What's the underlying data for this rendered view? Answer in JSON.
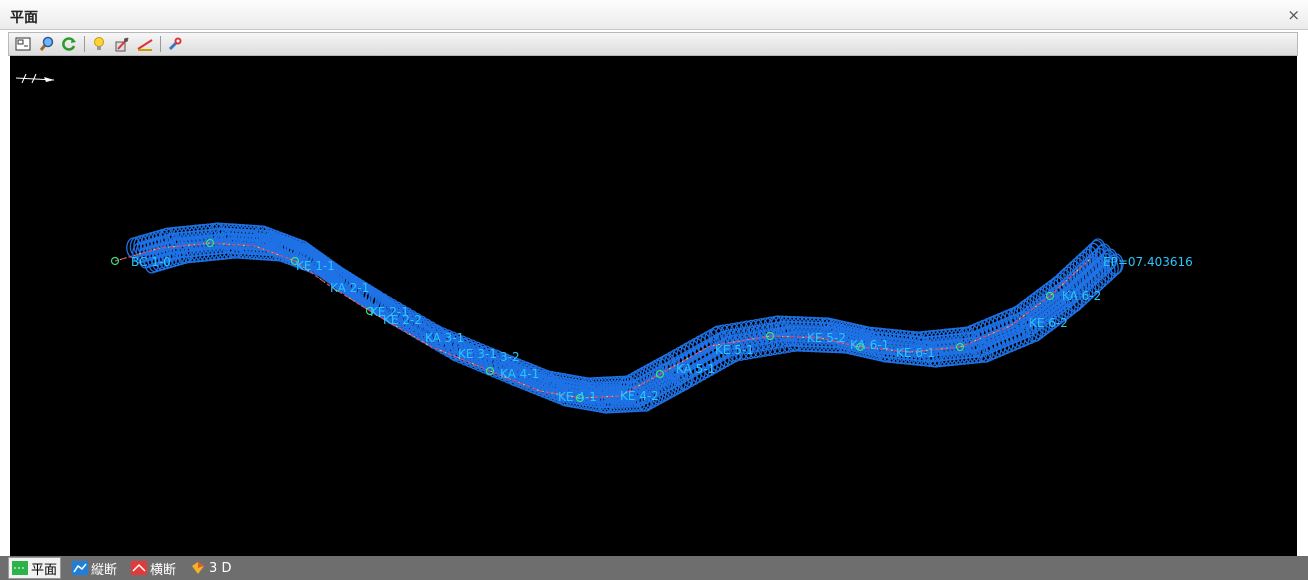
{
  "window": {
    "title": "平面",
    "close_symbol": "×"
  },
  "toolbar": {
    "buttons": [
      {
        "icon": "fit-view-icon"
      },
      {
        "icon": "zoom-magnifier-icon"
      },
      {
        "icon": "refresh-icon"
      },
      {
        "icon": "lightbulb-icon"
      },
      {
        "icon": "settings-tool-icon"
      },
      {
        "icon": "measure-ruler-icon"
      },
      {
        "icon": "tools-wrench-icon"
      }
    ]
  },
  "plan_view": {
    "background": "#000000",
    "label_color": "#29c6ff",
    "band_color": "#1e72e6",
    "alignment_labels": [
      {
        "text": "BC  1-0"
      },
      {
        "text": "KE  1-1"
      },
      {
        "text": "KA  2-1"
      },
      {
        "text": "KE  2-1"
      },
      {
        "text": "KE  2-2"
      },
      {
        "text": "KA  3-1"
      },
      {
        "text": "KE 3-1"
      },
      {
        "text": "3-2"
      },
      {
        "text": "KA  4-1"
      },
      {
        "text": "KE  4-1"
      },
      {
        "text": "KE  4-2"
      },
      {
        "text": "KA  5-1"
      },
      {
        "text": "KE  5-1"
      },
      {
        "text": "KE  5-2"
      },
      {
        "text": "KA  6-1"
      },
      {
        "text": "KE  6-1"
      },
      {
        "text": "KE  6-2"
      },
      {
        "text": "KA  6-2"
      },
      {
        "text": "EP=07.403616"
      }
    ]
  },
  "bottom_tabs": [
    {
      "label": "平面",
      "icon": "plan-view-icon",
      "active": true
    },
    {
      "label": "縦断",
      "icon": "profile-view-icon",
      "active": false
    },
    {
      "label": "横断",
      "icon": "cross-section-icon",
      "active": false
    },
    {
      "label": "3 D",
      "icon": "3d-view-icon",
      "active": false
    }
  ]
}
